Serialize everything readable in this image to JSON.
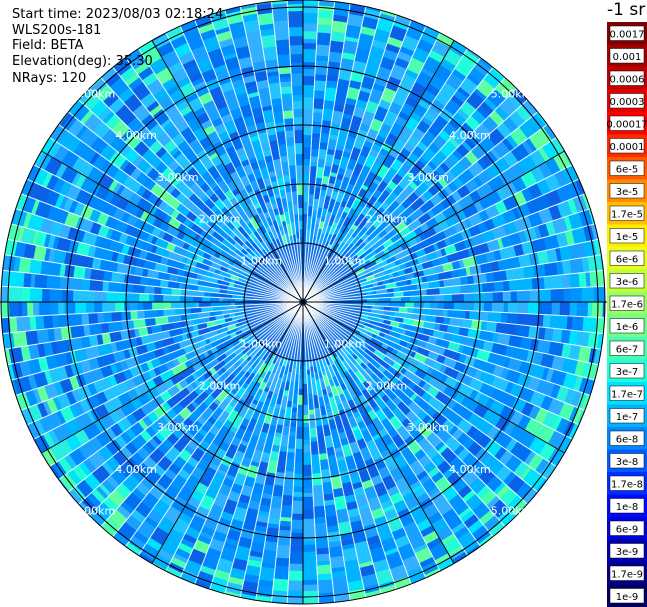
{
  "header": {
    "start_time": "Start time: 2023/08/03 02:18:24",
    "device": "WLS200s-181",
    "field": "Field: BETA",
    "elevation": "Elevation(deg): 35.30",
    "nrays": "NRays: 120",
    "unit": "-1 sr"
  },
  "chart_data": {
    "type": "heatmap",
    "projection": "polar (PPI)",
    "nrays": 120,
    "rings_km": [
      1,
      2,
      3,
      4,
      5
    ],
    "ring_labels": [
      "1.00km",
      "2.00km",
      "3.00km",
      "4.00km",
      "5.00km"
    ],
    "colorbar": {
      "labels": [
        "0.0017",
        "0.001",
        "0.0006",
        "0.0003",
        "0.00017",
        "0.0001",
        "6e-5",
        "3e-5",
        "1.7e-5",
        "1e-5",
        "6e-6",
        "3e-6",
        "1.7e-6",
        "1e-6",
        "6e-7",
        "3e-7",
        "1.7e-7",
        "1e-7",
        "6e-8",
        "3e-8",
        "1.7e-8",
        "1e-8",
        "6e-9",
        "3e-9",
        "1.7e-9",
        "1e-9"
      ],
      "colors": [
        "#800000",
        "#a00000",
        "#c00000",
        "#e80000",
        "#ff0000",
        "#ff2a00",
        "#ff5a00",
        "#ff8c00",
        "#ffbe00",
        "#ffee00",
        "#e8ff18",
        "#c0ff3c",
        "#98ff60",
        "#70ff88",
        "#48ffb0",
        "#20ffd8",
        "#00e0ff",
        "#00b4ff",
        "#0088ff",
        "#005cff",
        "#0030ff",
        "#0008ff",
        "#0000d8",
        "#0000b0",
        "#000088",
        "#000060"
      ]
    }
  }
}
